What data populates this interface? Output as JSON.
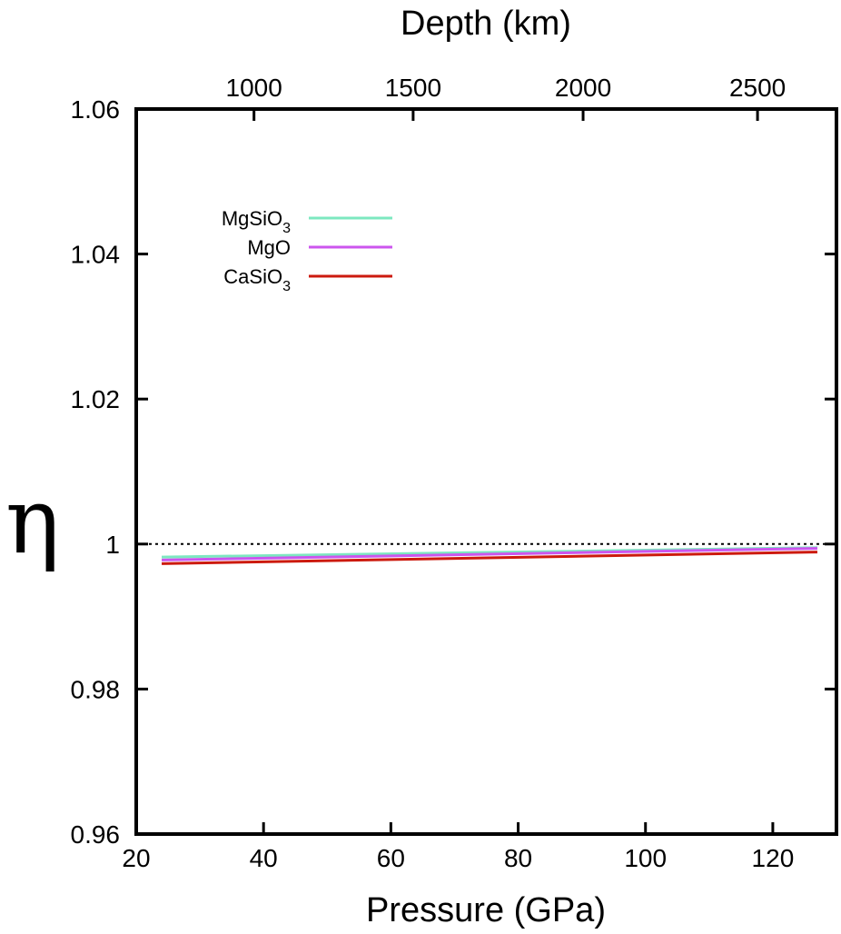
{
  "chart_data": {
    "type": "line",
    "xlabel": "Pressure (GPa)",
    "ylabel": "η",
    "top_xlabel": "Depth (km)",
    "xlim": [
      20,
      130
    ],
    "ylim": [
      0.96,
      1.06
    ],
    "x_ticks": [
      {
        "value": 20,
        "label": "20"
      },
      {
        "value": 40,
        "label": "40"
      },
      {
        "value": 60,
        "label": "60"
      },
      {
        "value": 80,
        "label": "80"
      },
      {
        "value": 100,
        "label": "100"
      },
      {
        "value": 120,
        "label": "120"
      }
    ],
    "y_ticks": [
      {
        "value": 0.96,
        "label": "0.96"
      },
      {
        "value": 0.98,
        "label": "0.98"
      },
      {
        "value": 1.0,
        "label": "1"
      },
      {
        "value": 1.02,
        "label": "1.02"
      },
      {
        "value": 1.04,
        "label": "1.04"
      },
      {
        "value": 1.06,
        "label": "1.06"
      }
    ],
    "top_ticks": [
      {
        "value": 1000,
        "label": "1000",
        "pressure": 38.5
      },
      {
        "value": 1500,
        "label": "1500",
        "pressure": 63.5
      },
      {
        "value": 2000,
        "label": "2000",
        "pressure": 90.2
      },
      {
        "value": 2500,
        "label": "2500",
        "pressure": 117.6
      }
    ],
    "reference_line": {
      "y": 1.0,
      "style": "dotted",
      "color": "#000000"
    },
    "grid": false,
    "legend_position": "top-left",
    "series": [
      {
        "name": "MgSiO",
        "subscript": "3",
        "color": "#7de8c0",
        "x": [
          24,
          127
        ],
        "y": [
          0.9982,
          0.9995
        ]
      },
      {
        "name": "MgO",
        "subscript": "",
        "color": "#cc55ee",
        "x": [
          24,
          127
        ],
        "y": [
          0.9978,
          0.9994
        ]
      },
      {
        "name": "CaSiO",
        "subscript": "3",
        "color": "#cc1a0e",
        "x": [
          24,
          127
        ],
        "y": [
          0.9973,
          0.9989
        ]
      }
    ]
  }
}
